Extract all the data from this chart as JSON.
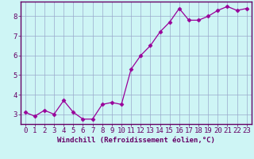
{
  "x": [
    0,
    1,
    2,
    3,
    4,
    5,
    6,
    7,
    8,
    9,
    10,
    11,
    12,
    13,
    14,
    15,
    16,
    17,
    18,
    19,
    20,
    21,
    22,
    23
  ],
  "y": [
    3.1,
    2.9,
    3.2,
    3.0,
    3.7,
    3.1,
    2.75,
    2.75,
    3.5,
    3.6,
    3.5,
    5.3,
    6.0,
    6.5,
    7.2,
    7.7,
    8.4,
    7.8,
    7.8,
    8.0,
    8.3,
    8.5,
    8.3,
    8.4
  ],
  "line_color": "#990099",
  "marker": "D",
  "marker_size": 2.5,
  "bg_color": "#cef5f5",
  "grid_color": "#99aacc",
  "xlabel": "Windchill (Refroidissement éolien,°C)",
  "xlim": [
    -0.5,
    23.5
  ],
  "ylim": [
    2.5,
    8.75
  ],
  "yticks": [
    3,
    4,
    5,
    6,
    7,
    8
  ],
  "xticks": [
    0,
    1,
    2,
    3,
    4,
    5,
    6,
    7,
    8,
    9,
    10,
    11,
    12,
    13,
    14,
    15,
    16,
    17,
    18,
    19,
    20,
    21,
    22,
    23
  ],
  "xlabel_fontsize": 6.5,
  "tick_fontsize": 6.5,
  "label_color": "#660066",
  "spine_color": "#660066",
  "bottom_spine_color": "#660066"
}
